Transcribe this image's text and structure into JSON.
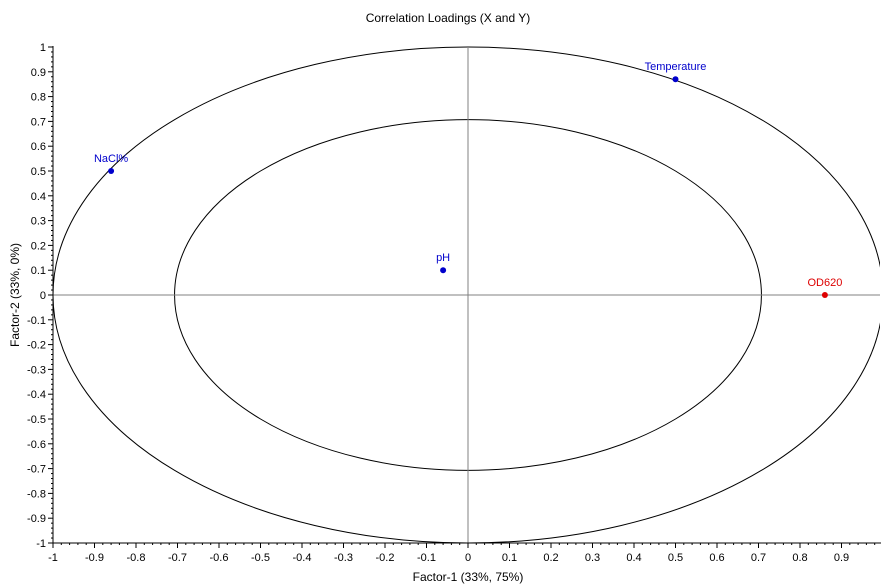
{
  "chart_data": {
    "type": "scatter",
    "title": "Correlation Loadings (X and Y)",
    "xlabel": "Factor-1 (33%, 75%)",
    "ylabel": "Factor-2 (33%, 0%)",
    "xlim": [
      -1,
      1
    ],
    "ylim": [
      -1,
      1
    ],
    "x_ticks": [
      -1,
      -0.9,
      -0.8,
      -0.7,
      -0.6,
      -0.5,
      -0.4,
      -0.3,
      -0.2,
      -0.1,
      0,
      0.1,
      0.2,
      0.3,
      0.4,
      0.5,
      0.6,
      0.7,
      0.8,
      0.9
    ],
    "y_ticks": [
      1,
      0.9,
      0.8,
      0.7,
      0.6,
      0.5,
      0.4,
      0.3,
      0.2,
      0.1,
      0,
      -0.1,
      -0.2,
      -0.3,
      -0.4,
      -0.5,
      -0.6,
      -0.7,
      -0.8,
      -0.9,
      -1
    ],
    "ellipses": [
      1.0,
      0.7071
    ],
    "grid": false,
    "points": [
      {
        "label": "Temperature",
        "x": 0.5,
        "y": 0.87,
        "group": "X",
        "color": "#0000cc"
      },
      {
        "label": "NaCl%",
        "x": -0.86,
        "y": 0.5,
        "group": "X",
        "color": "#0000cc"
      },
      {
        "label": "pH",
        "x": -0.06,
        "y": 0.1,
        "group": "X",
        "color": "#0000cc"
      },
      {
        "label": "OD620",
        "x": 0.86,
        "y": 0.0,
        "group": "Y",
        "color": "#dd0000"
      }
    ]
  }
}
